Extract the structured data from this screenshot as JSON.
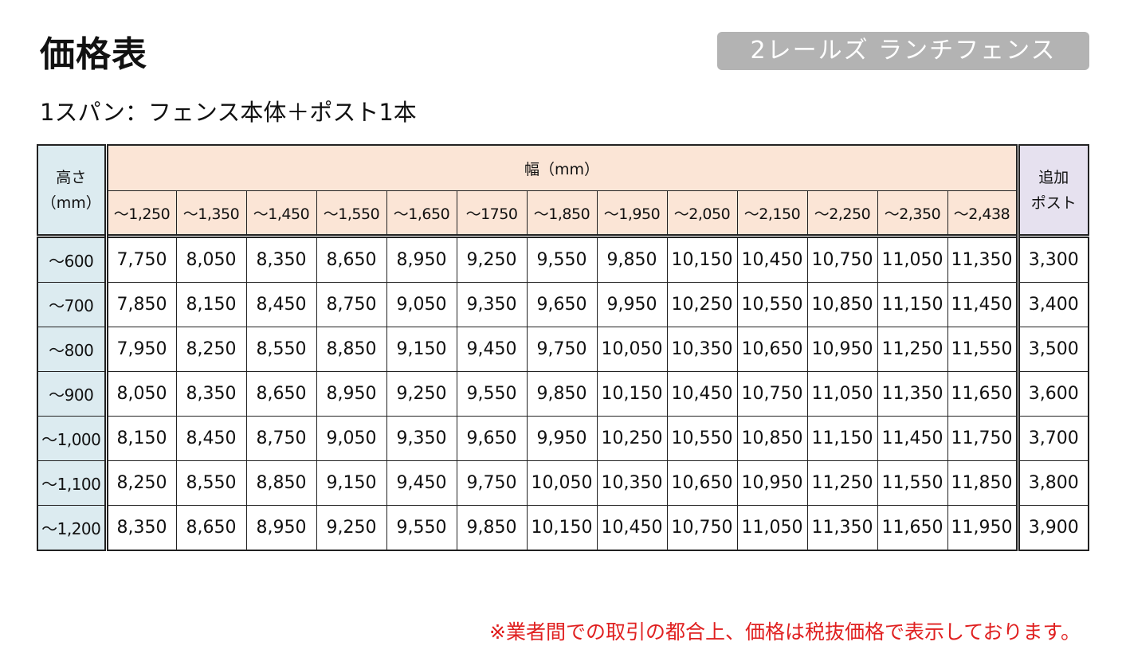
{
  "page": {
    "title": "価格表",
    "badge": "2レールズ ランチフェンス",
    "subtitle": "1スパン：フェンス本体＋ポスト1本",
    "note": "※業者間での取引の都合上、価格は税抜価格で表示しております。"
  },
  "table": {
    "height_header_line1": "高さ",
    "height_header_line2": "（mm）",
    "width_header": "幅（mm）",
    "post_header_line1": "追加",
    "post_header_line2": "ポスト",
    "width_columns": [
      "～1,250",
      "～1,350",
      "～1,450",
      "～1,550",
      "～1,650",
      "～1750",
      "～1,850",
      "～1,950",
      "～2,050",
      "～2,150",
      "～2,250",
      "～2,350",
      "～2,438"
    ],
    "rows": [
      {
        "height": "～600",
        "prices": [
          "7,750",
          "8,050",
          "8,350",
          "8,650",
          "8,950",
          "9,250",
          "9,550",
          "9,850",
          "10,150",
          "10,450",
          "10,750",
          "11,050",
          "11,350"
        ],
        "post": "3,300"
      },
      {
        "height": "～700",
        "prices": [
          "7,850",
          "8,150",
          "8,450",
          "8,750",
          "9,050",
          "9,350",
          "9,650",
          "9,950",
          "10,250",
          "10,550",
          "10,850",
          "11,150",
          "11,450"
        ],
        "post": "3,400"
      },
      {
        "height": "～800",
        "prices": [
          "7,950",
          "8,250",
          "8,550",
          "8,850",
          "9,150",
          "9,450",
          "9,750",
          "10,050",
          "10,350",
          "10,650",
          "10,950",
          "11,250",
          "11,550"
        ],
        "post": "3,500"
      },
      {
        "height": "～900",
        "prices": [
          "8,050",
          "8,350",
          "8,650",
          "8,950",
          "9,250",
          "9,550",
          "9,850",
          "10,150",
          "10,450",
          "10,750",
          "11,050",
          "11,350",
          "11,650"
        ],
        "post": "3,600"
      },
      {
        "height": "～1,000",
        "prices": [
          "8,150",
          "8,450",
          "8,750",
          "9,050",
          "9,350",
          "9,650",
          "9,950",
          "10,250",
          "10,550",
          "10,850",
          "11,150",
          "11,450",
          "11,750"
        ],
        "post": "3,700"
      },
      {
        "height": "～1,100",
        "prices": [
          "8,250",
          "8,550",
          "8,850",
          "9,150",
          "9,450",
          "9,750",
          "10,050",
          "10,350",
          "10,650",
          "10,950",
          "11,250",
          "11,550",
          "11,850"
        ],
        "post": "3,800"
      },
      {
        "height": "～1,200",
        "prices": [
          "8,350",
          "8,650",
          "8,950",
          "9,250",
          "9,550",
          "9,850",
          "10,150",
          "10,450",
          "10,750",
          "11,050",
          "11,350",
          "11,650",
          "11,950"
        ],
        "post": "3,900"
      }
    ]
  }
}
